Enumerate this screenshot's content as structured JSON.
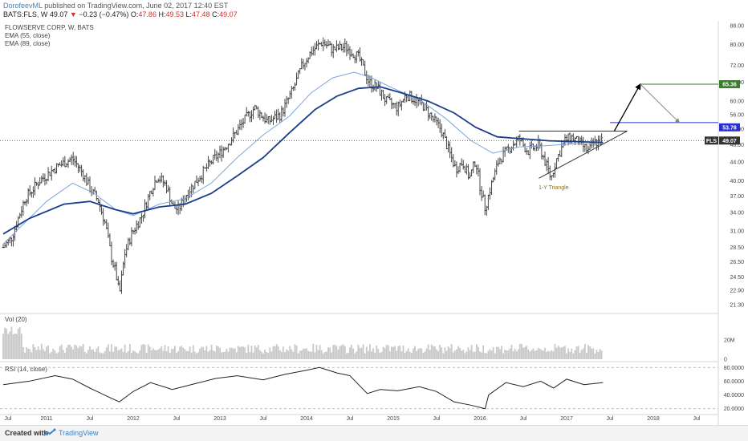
{
  "header": {
    "author": "DorofeevML",
    "published_text": "published on TradingView.com, June 02, 2017 12:40 EST",
    "symbol": "BATS:FLS, W",
    "price": "49.07",
    "change": "−0.23 (−0.47%)",
    "ohlc_open_label": "O:",
    "ohlc_open": "47.86",
    "ohlc_high_label": "H:",
    "ohlc_high": "49.53",
    "ohlc_low_label": "L:",
    "ohlc_low": "47.48",
    "ohlc_close_label": "C:",
    "ohlc_close": "49.07",
    "down_arrow": "▼"
  },
  "legends": {
    "main_title": "FLOWSERVE CORP, W, BATS",
    "ema55": "EMA (55, close)",
    "ema89": "EMA (89, close)",
    "vol": "Vol (20)",
    "rsi": "RSI (14, close)"
  },
  "annotations": {
    "triangle_label": "1-Y Triangle"
  },
  "badges": {
    "fls_tag": "FLS",
    "fls_price": "49.07",
    "target_green": "65.36",
    "target_blue": "53.78",
    "green_color": "#3a7d2c",
    "blue_color": "#2a2fcf"
  },
  "footer": {
    "created_with": "Created with",
    "brand": "TradingView"
  },
  "chart_data": {
    "type": "candlestick",
    "title": "FLOWSERVE CORP, W, BATS",
    "price_axis": {
      "scale": "log",
      "ticks": [
        88.0,
        80.0,
        72.0,
        66.0,
        60.0,
        56.0,
        52.0,
        48.0,
        44.0,
        40.0,
        37.0,
        34.0,
        31.0,
        28.5,
        26.5,
        24.5,
        22.9,
        21.3
      ],
      "range": [
        20.6,
        89.5
      ]
    },
    "time_axis": {
      "labels": [
        "Jul",
        "2011",
        "Jul",
        "2012",
        "Jul",
        "2013",
        "Jul",
        "2014",
        "Jul",
        "2015",
        "Jul",
        "2016",
        "Jul",
        "2017",
        "Jul",
        "2018",
        "Jul"
      ],
      "range": [
        2010.5,
        2018.75
      ]
    },
    "price_path": [
      [
        2010.5,
        28.5
      ],
      [
        2010.6,
        30.0
      ],
      [
        2010.75,
        36.5
      ],
      [
        2010.92,
        40.0
      ],
      [
        2011.12,
        43.0
      ],
      [
        2011.3,
        44.8
      ],
      [
        2011.42,
        41.5
      ],
      [
        2011.5,
        38.5
      ],
      [
        2011.6,
        36.0
      ],
      [
        2011.68,
        32.0
      ],
      [
        2011.75,
        27.0
      ],
      [
        2011.8,
        25.0
      ],
      [
        2011.84,
        22.3
      ],
      [
        2011.9,
        27.5
      ],
      [
        2011.98,
        30.5
      ],
      [
        2012.1,
        33.5
      ],
      [
        2012.2,
        38.0
      ],
      [
        2012.28,
        41.0
      ],
      [
        2012.38,
        39.0
      ],
      [
        2012.46,
        35.0
      ],
      [
        2012.52,
        34.5
      ],
      [
        2012.62,
        37.5
      ],
      [
        2012.75,
        40.5
      ],
      [
        2012.92,
        44.5
      ],
      [
        2013.0,
        46.0
      ],
      [
        2013.15,
        50.0
      ],
      [
        2013.3,
        55.0
      ],
      [
        2013.4,
        58.0
      ],
      [
        2013.55,
        54.0
      ],
      [
        2013.7,
        56.0
      ],
      [
        2013.85,
        64.0
      ],
      [
        2013.95,
        72.0
      ],
      [
        2014.05,
        77.0
      ],
      [
        2014.18,
        81.0
      ],
      [
        2014.3,
        78.0
      ],
      [
        2014.45,
        79.0
      ],
      [
        2014.6,
        75.0
      ],
      [
        2014.72,
        66.0
      ],
      [
        2014.82,
        64.0
      ],
      [
        2014.92,
        60.0
      ],
      [
        2015.05,
        58.0
      ],
      [
        2015.15,
        62.0
      ],
      [
        2015.25,
        60.5
      ],
      [
        2015.35,
        58.5
      ],
      [
        2015.45,
        55.0
      ],
      [
        2015.55,
        52.0
      ],
      [
        2015.65,
        46.0
      ],
      [
        2015.72,
        42.5
      ],
      [
        2015.8,
        44.0
      ],
      [
        2015.88,
        40.5
      ],
      [
        2015.95,
        44.5
      ],
      [
        2016.0,
        39.0
      ],
      [
        2016.06,
        34.8
      ],
      [
        2016.12,
        38.5
      ],
      [
        2016.22,
        44.5
      ],
      [
        2016.35,
        47.5
      ],
      [
        2016.45,
        49.5
      ],
      [
        2016.55,
        46.5
      ],
      [
        2016.68,
        48.0
      ],
      [
        2016.82,
        40.5
      ],
      [
        2016.88,
        44.5
      ],
      [
        2016.98,
        49.0
      ],
      [
        2017.05,
        50.0
      ],
      [
        2017.15,
        48.5
      ],
      [
        2017.25,
        46.5
      ],
      [
        2017.32,
        48.5
      ],
      [
        2017.42,
        49.07
      ]
    ],
    "series": [
      {
        "name": "EMA (55, close)",
        "color": "#7da6dc",
        "values": [
          [
            2010.5,
            29.0
          ],
          [
            2011.0,
            36.0
          ],
          [
            2011.3,
            39.5
          ],
          [
            2011.55,
            37.5
          ],
          [
            2011.8,
            34.5
          ],
          [
            2012.0,
            33.5
          ],
          [
            2012.3,
            35.5
          ],
          [
            2012.6,
            36.5
          ],
          [
            2012.9,
            39.5
          ],
          [
            2013.2,
            45.0
          ],
          [
            2013.5,
            50.5
          ],
          [
            2013.8,
            55.5
          ],
          [
            2014.05,
            62.5
          ],
          [
            2014.3,
            67.5
          ],
          [
            2014.55,
            69.5
          ],
          [
            2014.75,
            67.5
          ],
          [
            2015.0,
            64.0
          ],
          [
            2015.3,
            60.5
          ],
          [
            2015.6,
            55.0
          ],
          [
            2015.9,
            49.0
          ],
          [
            2016.15,
            46.0
          ],
          [
            2016.45,
            47.5
          ],
          [
            2016.75,
            47.8
          ],
          [
            2017.05,
            48.2
          ],
          [
            2017.42,
            48.3
          ]
        ]
      },
      {
        "name": "EMA (89, close)",
        "color": "#1a3e8c",
        "values": [
          [
            2010.5,
            30.5
          ],
          [
            2010.8,
            33.0
          ],
          [
            2011.2,
            35.5
          ],
          [
            2011.5,
            36.0
          ],
          [
            2011.8,
            34.5
          ],
          [
            2012.0,
            33.8
          ],
          [
            2012.3,
            35.0
          ],
          [
            2012.6,
            35.5
          ],
          [
            2012.9,
            37.5
          ],
          [
            2013.2,
            41.0
          ],
          [
            2013.5,
            45.0
          ],
          [
            2013.8,
            51.0
          ],
          [
            2014.1,
            57.5
          ],
          [
            2014.35,
            61.5
          ],
          [
            2014.6,
            64.0
          ],
          [
            2014.85,
            64.5
          ],
          [
            2015.1,
            62.5
          ],
          [
            2015.4,
            60.0
          ],
          [
            2015.7,
            56.5
          ],
          [
            2015.95,
            52.5
          ],
          [
            2016.2,
            50.0
          ],
          [
            2016.5,
            49.5
          ],
          [
            2016.8,
            49.0
          ],
          [
            2017.1,
            48.8
          ],
          [
            2017.42,
            48.6
          ]
        ]
      }
    ],
    "levels": {
      "last_price": 49.07,
      "green_target": 65.36,
      "blue_target": 53.78
    },
    "volume": {
      "label": "Vol (20)",
      "axis_ticks": [
        {
          "label": "20M",
          "value": 20
        },
        {
          "label": "0",
          "value": 0
        }
      ]
    },
    "rsi": {
      "label": "RSI (14, close)",
      "axis_ticks": [
        {
          "label": "80.0000",
          "value": 80
        },
        {
          "label": "60.0000",
          "value": 60
        },
        {
          "label": "40.0000",
          "value": 40
        },
        {
          "label": "20.0000",
          "value": 20
        }
      ],
      "path": [
        [
          2010.5,
          55
        ],
        [
          2010.8,
          60
        ],
        [
          2011.1,
          68
        ],
        [
          2011.3,
          63
        ],
        [
          2011.5,
          50
        ],
        [
          2011.7,
          38
        ],
        [
          2011.84,
          30
        ],
        [
          2012.0,
          45
        ],
        [
          2012.2,
          58
        ],
        [
          2012.45,
          48
        ],
        [
          2012.7,
          56
        ],
        [
          2012.95,
          64
        ],
        [
          2013.2,
          68
        ],
        [
          2013.5,
          62
        ],
        [
          2013.75,
          70
        ],
        [
          2014.0,
          76
        ],
        [
          2014.15,
          80
        ],
        [
          2014.35,
          72
        ],
        [
          2014.5,
          68
        ],
        [
          2014.7,
          42
        ],
        [
          2014.85,
          48
        ],
        [
          2015.05,
          46
        ],
        [
          2015.3,
          52
        ],
        [
          2015.5,
          45
        ],
        [
          2015.7,
          30
        ],
        [
          2015.9,
          25
        ],
        [
          2016.06,
          20
        ],
        [
          2016.1,
          40
        ],
        [
          2016.3,
          58
        ],
        [
          2016.5,
          52
        ],
        [
          2016.7,
          60
        ],
        [
          2016.85,
          50
        ],
        [
          2017.0,
          63
        ],
        [
          2017.2,
          55
        ],
        [
          2017.42,
          58
        ]
      ]
    }
  }
}
